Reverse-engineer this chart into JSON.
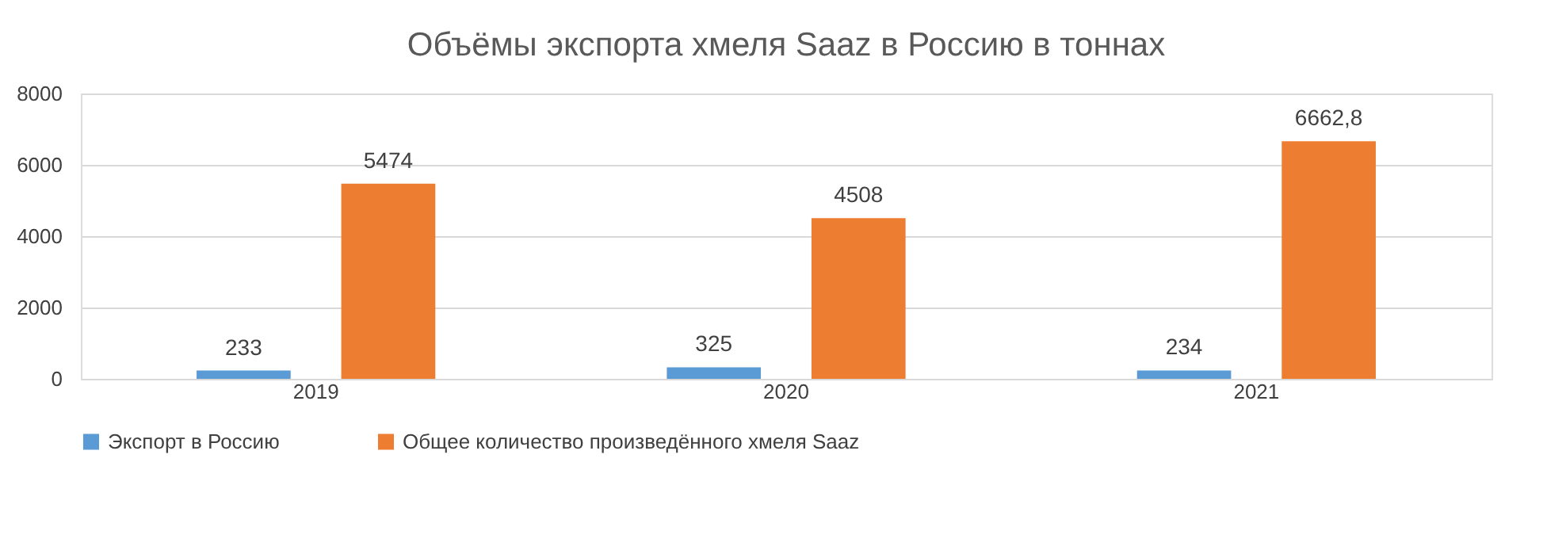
{
  "chart_data": {
    "type": "bar",
    "title": "Объёмы экспорта хмеля Saaz в Россию в тоннах",
    "categories": [
      "2019",
      "2020",
      "2021"
    ],
    "series": [
      {
        "name": "Экспорт в Россию",
        "color": "#5b9bd5",
        "values": [
          233,
          325,
          234
        ],
        "value_labels": [
          "233",
          "325",
          "234"
        ]
      },
      {
        "name": "Общее количество произведённого хмеля Saaz",
        "color": "#ed7d31",
        "values": [
          5474,
          4508,
          6662.8
        ],
        "value_labels": [
          "5474",
          "4508",
          "6662,8"
        ]
      }
    ],
    "ylim": [
      0,
      8000
    ],
    "yticks": [
      0,
      2000,
      4000,
      6000,
      8000
    ],
    "grid": "y",
    "legend": "bottom"
  }
}
